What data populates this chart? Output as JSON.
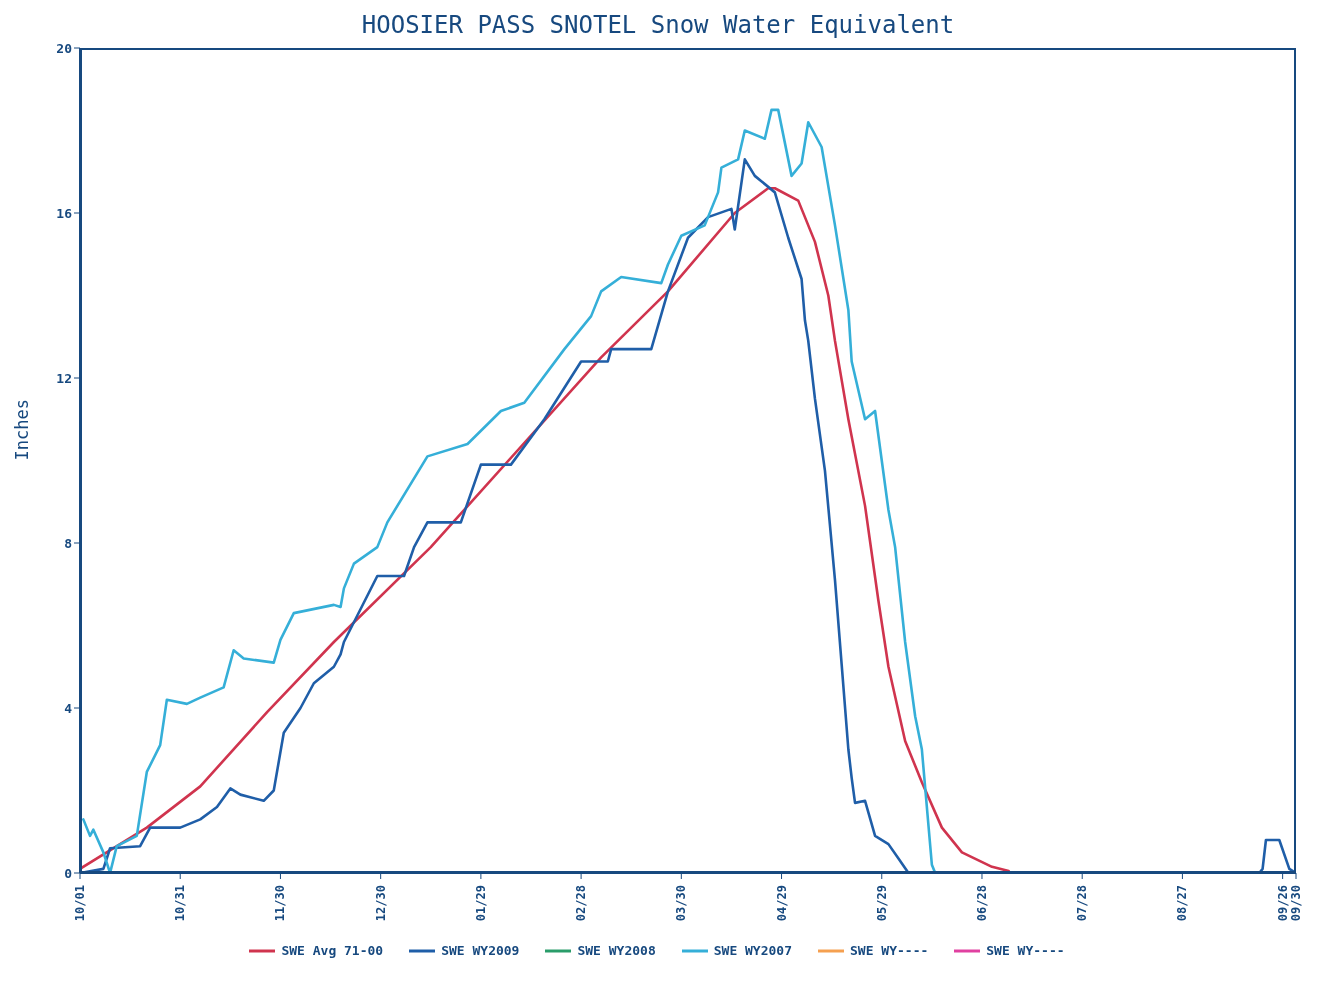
{
  "chart_data": {
    "type": "line",
    "title": "HOOSIER PASS SNOTEL Snow Water Equivalent",
    "ylabel": "Inches",
    "xlim": [
      "2008-10-01",
      "2009-09-30"
    ],
    "xticks": [
      {
        "value": "2008-10-01",
        "label": "10/01"
      },
      {
        "value": "2008-10-31",
        "label": "10/31"
      },
      {
        "value": "2008-11-30",
        "label": "11/30"
      },
      {
        "value": "2008-12-30",
        "label": "12/30"
      },
      {
        "value": "2009-01-29",
        "label": "01/29"
      },
      {
        "value": "2009-02-28",
        "label": "02/28"
      },
      {
        "value": "2009-03-30",
        "label": "03/30"
      },
      {
        "value": "2009-04-29",
        "label": "04/29"
      },
      {
        "value": "2009-05-29",
        "label": "05/29"
      },
      {
        "value": "2009-06-28",
        "label": "06/28"
      },
      {
        "value": "2009-07-28",
        "label": "07/28"
      },
      {
        "value": "2009-08-27",
        "label": "08/27"
      },
      {
        "value": "2009-09-26",
        "label": "09/26"
      },
      {
        "value": "2009-09-30",
        "label": "09/30"
      }
    ],
    "ylim": [
      0,
      20
    ],
    "yticks": [
      0,
      4,
      8,
      12,
      16,
      20
    ],
    "legend": "bottom",
    "marker": "none",
    "line_style": "solid",
    "series": [
      {
        "name": "SWE Avg 71-00",
        "color": "#d0344e",
        "x": [
          "2008-10-01",
          "2008-10-21",
          "2008-11-06",
          "2008-11-26",
          "2008-12-16",
          "2009-01-14",
          "2009-03-06",
          "2009-03-26",
          "2009-04-15",
          "2009-04-25",
          "2009-04-27",
          "2009-05-04",
          "2009-05-09",
          "2009-05-13",
          "2009-05-15",
          "2009-05-19",
          "2009-05-24",
          "2009-05-28",
          "2009-05-31",
          "2009-06-05",
          "2009-06-10",
          "2009-06-16",
          "2009-06-22",
          "2009-07-01",
          "2009-07-06"
        ],
        "values": [
          0.1,
          1.1,
          2.1,
          3.9,
          5.6,
          7.9,
          12.5,
          14.1,
          16.0,
          16.6,
          16.6,
          16.3,
          15.3,
          14.0,
          12.9,
          11.0,
          8.9,
          6.6,
          5.0,
          3.2,
          2.2,
          1.1,
          0.5,
          0.15,
          0.05
        ]
      },
      {
        "name": "SWE WY2009",
        "color": "#1f5ea8",
        "x": [
          "2008-10-01",
          "2008-10-08",
          "2008-10-10",
          "2008-10-19",
          "2008-10-22",
          "2008-10-31",
          "2008-11-06",
          "2008-11-11",
          "2008-11-15",
          "2008-11-18",
          "2008-11-25",
          "2008-11-28",
          "2008-12-01",
          "2008-12-06",
          "2008-12-10",
          "2008-12-16",
          "2008-12-18",
          "2008-12-19",
          "2008-12-24",
          "2008-12-29",
          "2009-01-06",
          "2009-01-09",
          "2009-01-13",
          "2009-01-23",
          "2009-01-29",
          "2009-02-07",
          "2009-02-17",
          "2009-02-28",
          "2009-03-08",
          "2009-03-09",
          "2009-03-21",
          "2009-03-26",
          "2009-04-01",
          "2009-04-07",
          "2009-04-14",
          "2009-04-15",
          "2009-04-18",
          "2009-04-21",
          "2009-04-27",
          "2009-05-01",
          "2009-05-05",
          "2009-05-06",
          "2009-05-07",
          "2009-05-09",
          "2009-05-12",
          "2009-05-15",
          "2009-05-17",
          "2009-05-19",
          "2009-05-20",
          "2009-05-21",
          "2009-05-24",
          "2009-05-27",
          "2009-05-31",
          "2009-06-03",
          "2009-06-06",
          "2009-06-13",
          "2009-07-15",
          "2009-09-19",
          "2009-09-20",
          "2009-09-21",
          "2009-09-25",
          "2009-09-28",
          "2009-09-30"
        ],
        "values": [
          0,
          0.1,
          0.6,
          0.65,
          1.1,
          1.1,
          1.3,
          1.6,
          2.05,
          1.9,
          1.75,
          2.0,
          3.4,
          4.0,
          4.6,
          5.0,
          5.3,
          5.6,
          6.4,
          7.2,
          7.2,
          7.9,
          8.5,
          8.5,
          9.9,
          9.9,
          11.0,
          12.4,
          12.4,
          12.7,
          12.7,
          14.1,
          15.4,
          15.9,
          16.1,
          15.6,
          17.3,
          16.9,
          16.5,
          15.4,
          14.4,
          13.4,
          12.9,
          11.5,
          9.75,
          7.1,
          5.05,
          3.0,
          2.3,
          1.7,
          1.75,
          0.9,
          0.7,
          0.35,
          0,
          0,
          null,
          0,
          0.1,
          0.8,
          0.8,
          0.1,
          0
        ]
      },
      {
        "name": "SWE WY2008",
        "color": "#2a9d6a"
      },
      {
        "name": "SWE WY2007",
        "color": "#35afd8",
        "x": [
          "2008-10-02",
          "2008-10-04",
          "2008-10-05",
          "2008-10-08",
          "2008-10-10",
          "2008-10-12",
          "2008-10-18",
          "2008-10-21",
          "2008-10-25",
          "2008-10-27",
          "2008-11-02",
          "2008-11-06",
          "2008-11-13",
          "2008-11-16",
          "2008-11-19",
          "2008-11-28",
          "2008-11-30",
          "2008-12-04",
          "2008-12-16",
          "2008-12-18",
          "2008-12-19",
          "2008-12-22",
          "2008-12-29",
          "2009-01-01",
          "2009-01-13",
          "2009-01-25",
          "2009-02-04",
          "2009-02-11",
          "2009-02-23",
          "2009-03-03",
          "2009-03-06",
          "2009-03-12",
          "2009-03-24",
          "2009-03-26",
          "2009-03-30",
          "2009-04-06",
          "2009-04-10",
          "2009-04-11",
          "2009-04-16",
          "2009-04-18",
          "2009-04-24",
          "2009-04-26",
          "2009-04-28",
          "2009-05-02",
          "2009-05-05",
          "2009-05-07",
          "2009-05-11",
          "2009-05-15",
          "2009-05-19",
          "2009-05-20",
          "2009-05-24",
          "2009-05-27",
          "2009-05-31",
          "2009-06-02",
          "2009-06-05",
          "2009-06-08",
          "2009-06-10",
          "2009-06-13",
          "2009-06-14",
          "2009-09-30"
        ],
        "values": [
          1.3,
          0.9,
          1.05,
          0.5,
          0,
          0.65,
          0.9,
          2.45,
          3.1,
          4.2,
          4.1,
          4.25,
          4.5,
          5.4,
          5.2,
          5.1,
          5.65,
          6.3,
          6.5,
          6.45,
          6.9,
          7.5,
          7.9,
          8.5,
          10.1,
          10.4,
          11.2,
          11.4,
          12.7,
          13.5,
          14.1,
          14.45,
          14.3,
          14.75,
          15.45,
          15.7,
          16.5,
          17.1,
          17.3,
          18.0,
          17.8,
          18.5,
          18.5,
          16.9,
          17.2,
          18.2,
          17.6,
          15.7,
          13.65,
          12.4,
          11.0,
          11.2,
          8.8,
          7.9,
          5.6,
          3.8,
          3.0,
          0.2,
          0,
          0
        ]
      },
      {
        "name": "SWE WY----",
        "color": "#f5a050"
      },
      {
        "name": "SWE WY----",
        "color": "#e040a0"
      }
    ]
  }
}
